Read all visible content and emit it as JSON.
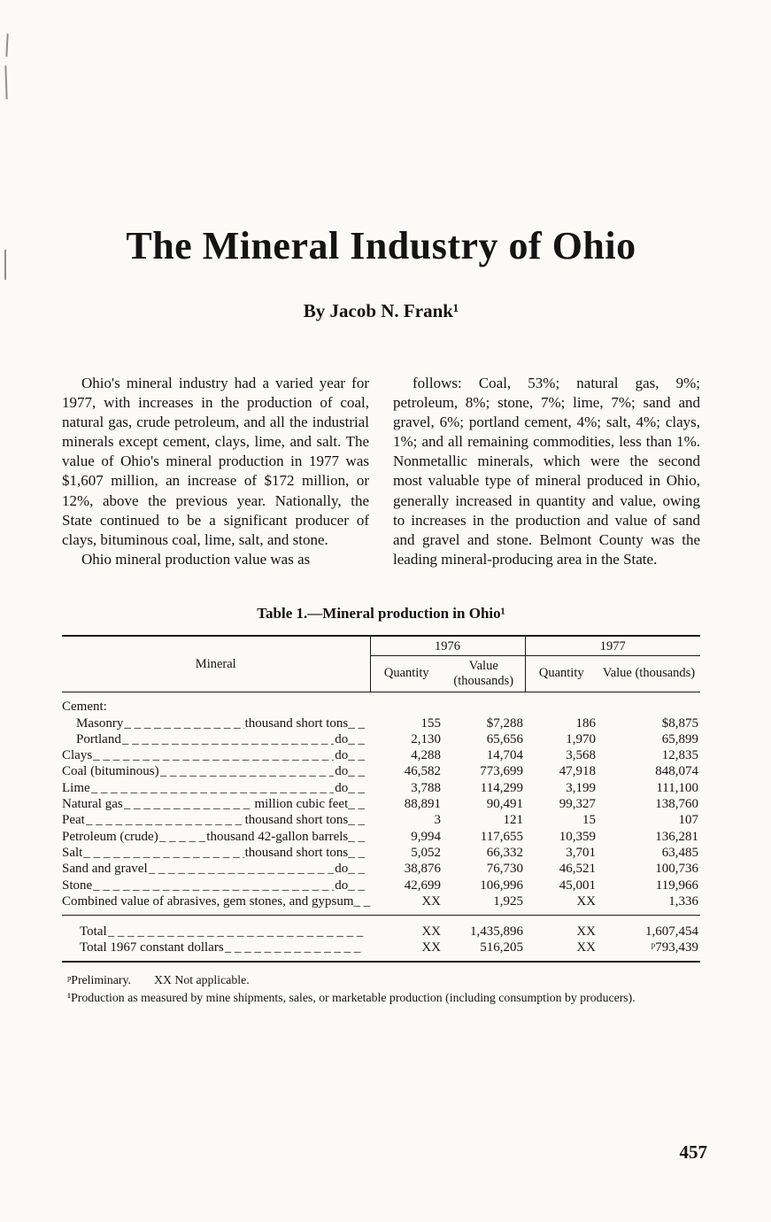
{
  "title": "The Mineral Industry of Ohio",
  "byline": "By Jacob N. Frank¹",
  "body": {
    "left": {
      "p1": "Ohio's mineral industry had a varied year for 1977, with increases in the production of coal, natural gas, crude petroleum, and all the industrial minerals except cement, clays, lime, and salt. The value of Ohio's mineral production in 1977 was $1,607 million, an increase of $172 million, or 12%, above the previous year. Nationally, the State continued to be a significant producer of clays, bituminous coal, lime, salt, and stone.",
      "p2": "Ohio mineral production value was as"
    },
    "right": {
      "p1": "follows: Coal, 53%; natural gas, 9%; petroleum, 8%; stone, 7%; lime, 7%; sand and gravel, 6%; portland cement, 4%; salt, 4%; clays, 1%; and all remaining commodities, less than 1%. Nonmetallic minerals, which were the second most valuable type of mineral produced in Ohio, generally increased in quantity and value, owing to increases in the production and value of sand and gravel and stone. Belmont County was the leading mineral-producing area in the State."
    }
  },
  "table": {
    "title": "Table 1.—Mineral production in Ohio¹",
    "headers": {
      "mineral": "Mineral",
      "year1": "1976",
      "year2": "1977",
      "quantity": "Quantity",
      "value": "Value (thousands)"
    },
    "rows": [
      {
        "label": "Cement:",
        "unit": "",
        "q76": "",
        "v76": "",
        "q77": "",
        "v77": ""
      },
      {
        "label": "Masonry",
        "unit": "thousand short tons",
        "q76": "155",
        "v76": "$7,288",
        "q77": "186",
        "v77": "$8,875"
      },
      {
        "label": "Portland",
        "unit": "do",
        "q76": "2,130",
        "v76": "65,656",
        "q77": "1,970",
        "v77": "65,899"
      },
      {
        "label": "Clays",
        "unit": "do",
        "q76": "4,288",
        "v76": "14,704",
        "q77": "3,568",
        "v77": "12,835"
      },
      {
        "label": "Coal (bituminous)",
        "unit": "do",
        "q76": "46,582",
        "v76": "773,699",
        "q77": "47,918",
        "v77": "848,074"
      },
      {
        "label": "Lime",
        "unit": "do",
        "q76": "3,788",
        "v76": "114,299",
        "q77": "3,199",
        "v77": "111,100"
      },
      {
        "label": "Natural gas",
        "unit": "million cubic feet",
        "q76": "88,891",
        "v76": "90,491",
        "q77": "99,327",
        "v77": "138,760"
      },
      {
        "label": "Peat",
        "unit": "thousand short tons",
        "q76": "3",
        "v76": "121",
        "q77": "15",
        "v77": "107"
      },
      {
        "label": "Petroleum (crude)",
        "unit": "thousand 42-gallon barrels",
        "q76": "9,994",
        "v76": "117,655",
        "q77": "10,359",
        "v77": "136,281"
      },
      {
        "label": "Salt",
        "unit": "thousand short tons",
        "q76": "5,052",
        "v76": "66,332",
        "q77": "3,701",
        "v77": "63,485"
      },
      {
        "label": "Sand and gravel",
        "unit": "do",
        "q76": "38,876",
        "v76": "76,730",
        "q77": "46,521",
        "v77": "100,736"
      },
      {
        "label": "Stone",
        "unit": "do",
        "q76": "42,699",
        "v76": "106,996",
        "q77": "45,001",
        "v77": "119,966"
      },
      {
        "label": "Combined value of abrasives, gem stones, and gypsum",
        "unit": "",
        "q76": "XX",
        "v76": "1,925",
        "q77": "XX",
        "v77": "1,336"
      }
    ],
    "totals": [
      {
        "label": "Total",
        "q76": "XX",
        "v76": "1,435,896",
        "q77": "XX",
        "v77": "1,607,454"
      },
      {
        "label": "Total 1967 constant dollars",
        "q76": "XX",
        "v76": "516,205",
        "q77": "XX",
        "v77": "ᵖ793,439"
      }
    ],
    "footnotes": {
      "f1a": "ᵖPreliminary.",
      "f1b": "XX Not applicable.",
      "f2": "¹Production as measured by mine shipments, sales, or marketable production (including consumption by producers)."
    }
  },
  "page_number": "457"
}
